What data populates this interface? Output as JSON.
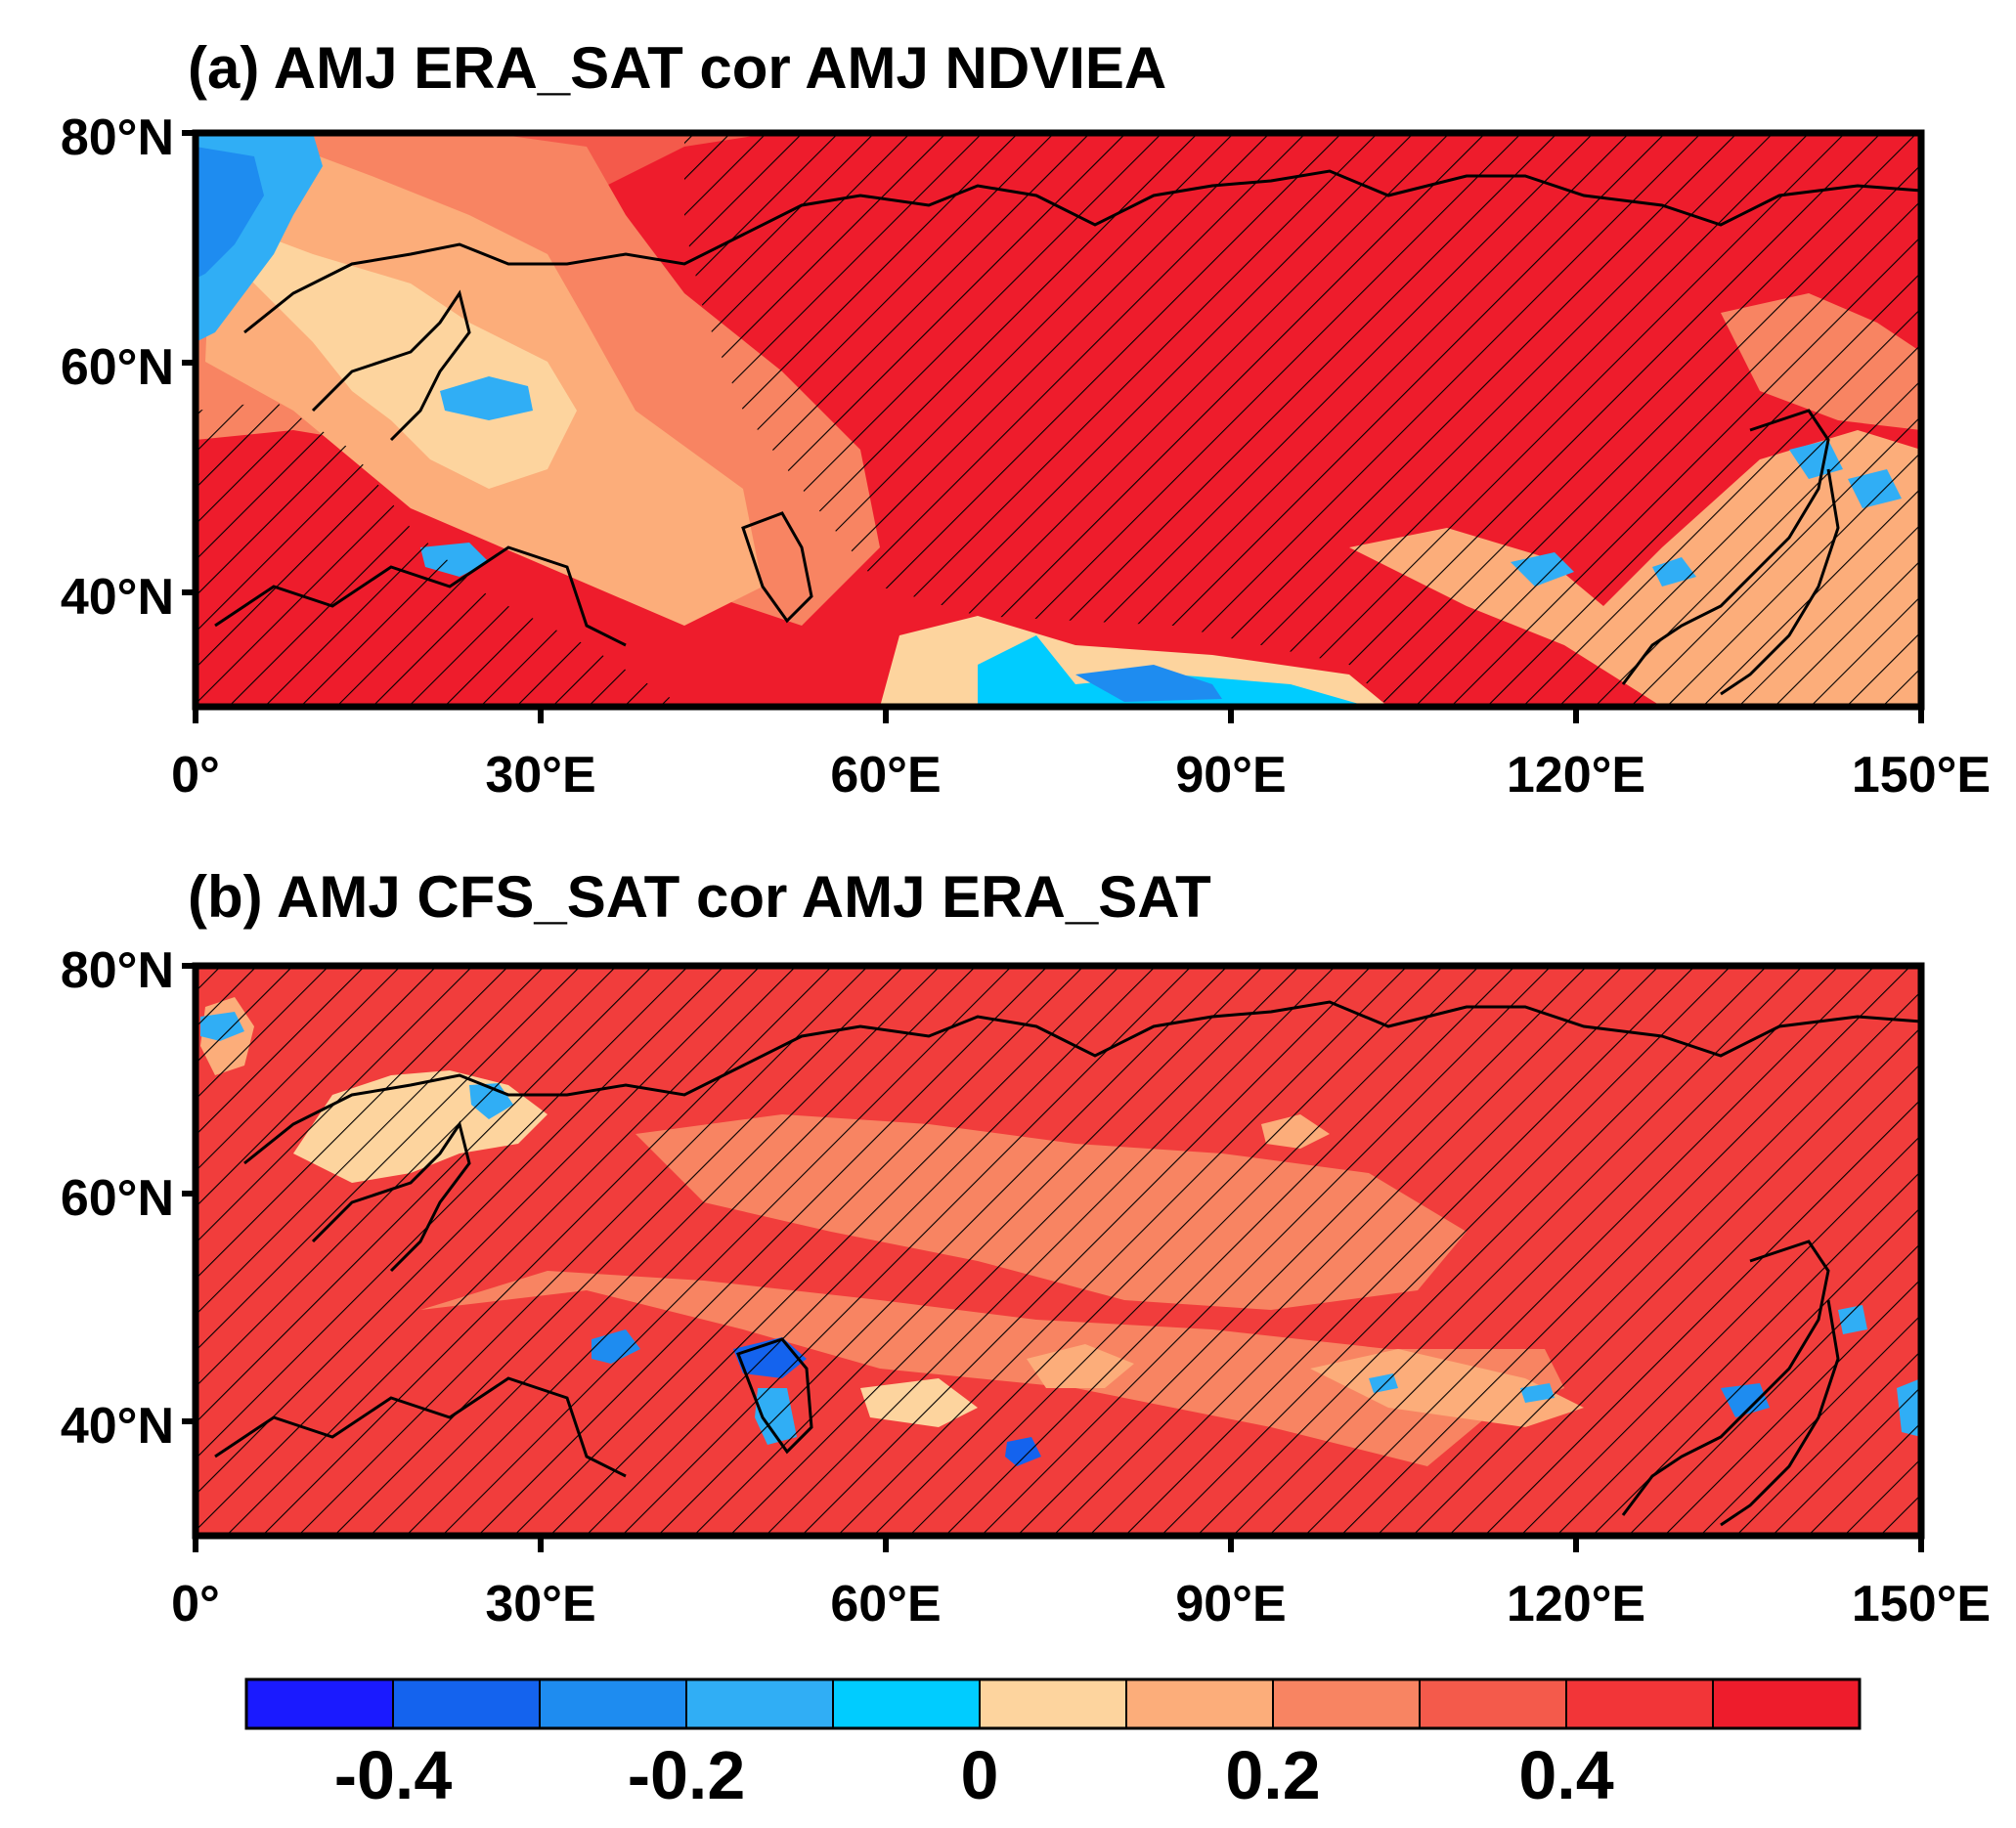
{
  "panels": [
    {
      "id": "a",
      "title": "(a) AMJ ERA_SAT cor AMJ NDVIEA",
      "lon_ticks": [
        "0°",
        "30°E",
        "60°E",
        "90°E",
        "120°E",
        "150°E"
      ],
      "lat_ticks": [
        "80°N",
        "60°N",
        "40°N"
      ]
    },
    {
      "id": "b",
      "title": "(b) AMJ CFS_SAT cor AMJ ERA_SAT",
      "lon_ticks": [
        "0°",
        "30°E",
        "60°E",
        "90°E",
        "120°E",
        "150°E"
      ],
      "lat_ticks": [
        "80°N",
        "60°N",
        "40°N"
      ]
    }
  ],
  "map_extent": {
    "lon_range": [
      0,
      150
    ],
    "lat_range": [
      30,
      80
    ]
  },
  "colorbar": {
    "labels": [
      "-0.4",
      "-0.2",
      "0",
      "0.2",
      "0.4"
    ],
    "colors": [
      "#1a1aff",
      "#1463ee",
      "#1e8cf0",
      "#30aef5",
      "#00ccff",
      "#fdd49e",
      "#fcad7a",
      "#f88462",
      "#f45a4b",
      "#f23538",
      "#ee1c2c"
    ]
  },
  "hatching": "stippled significance (diagonal lines)"
}
